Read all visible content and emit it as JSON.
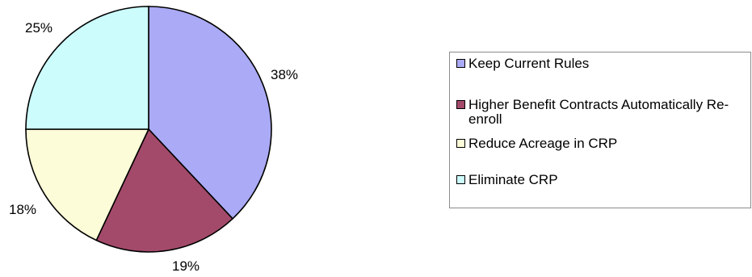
{
  "chart_data": {
    "type": "pie",
    "slices": [
      {
        "label": "Keep Current Rules",
        "value": 38,
        "value_label": "38%",
        "color": "#aaaaf6"
      },
      {
        "label": "Higher Benefit Contracts Automatically Re-enroll",
        "value": 19,
        "value_label": "19%",
        "color": "#a34a6a"
      },
      {
        "label": "Reduce Acreage in CRP",
        "value": 18,
        "value_label": "18%",
        "color": "#fcfcd8"
      },
      {
        "label": "Eliminate CRP",
        "value": 25,
        "value_label": "25%",
        "color": "#ccfcfc"
      }
    ],
    "legend_position": "right"
  }
}
